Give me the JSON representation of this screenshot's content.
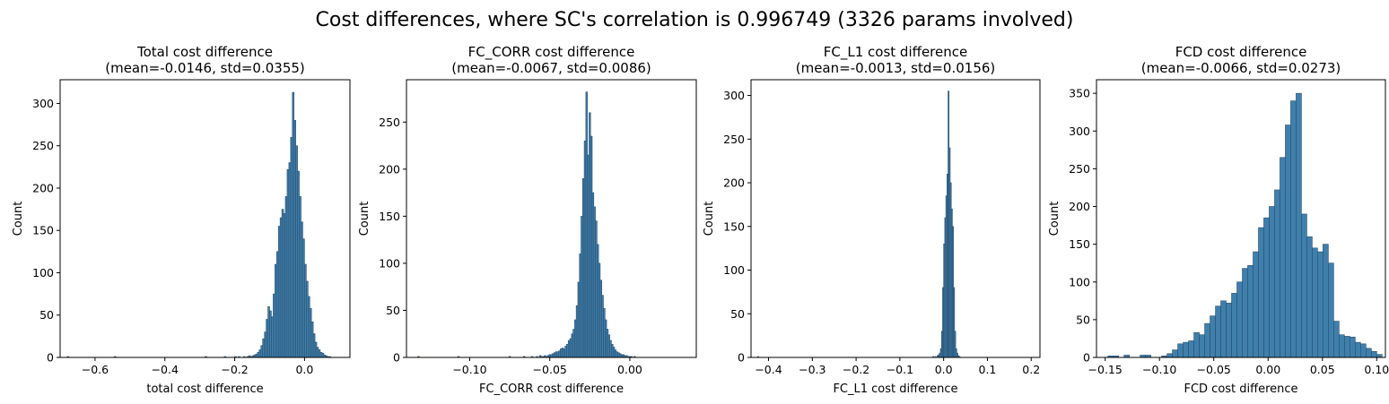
{
  "suptitle": "Cost differences, where SC's correlation is 0.996749 (3326 params involved)",
  "chart_data": [
    {
      "type": "bar",
      "title": "Total cost difference",
      "subtitle": "(mean=-0.0146, std=0.0355)",
      "xlabel": "total cost difference",
      "ylabel": "Count",
      "xlim": [
        -0.7,
        0.13
      ],
      "ylim": [
        0,
        328
      ],
      "xticks": [
        -0.6,
        -0.4,
        -0.2,
        0.0
      ],
      "yticks": [
        0,
        50,
        100,
        150,
        200,
        250,
        300
      ],
      "bar_color": "#3f7fac",
      "bin_start": -0.69,
      "bin_width": 0.005,
      "counts": [
        0,
        0,
        1,
        0,
        0,
        0,
        0,
        0,
        0,
        0,
        0,
        0,
        0,
        0,
        0,
        0,
        0,
        0,
        0,
        0,
        0,
        0,
        0,
        0,
        0,
        0,
        0,
        0,
        0,
        1,
        0,
        0,
        0,
        0,
        0,
        0,
        0,
        0,
        0,
        0,
        0,
        0,
        0,
        0,
        0,
        0,
        0,
        0,
        0,
        0,
        0,
        0,
        0,
        0,
        0,
        0,
        0,
        0,
        0,
        0,
        0,
        0,
        0,
        0,
        0,
        0,
        0,
        0,
        0,
        0,
        0,
        0,
        0,
        0,
        0,
        0,
        0,
        0,
        0,
        0,
        0,
        1,
        0,
        0,
        0,
        0,
        0,
        0,
        0,
        0,
        0,
        0,
        1,
        0,
        0,
        0,
        0,
        0,
        1,
        0,
        1,
        0,
        0,
        1,
        0,
        1,
        2,
        1,
        2,
        3,
        4,
        6,
        9,
        14,
        22,
        30,
        45,
        60,
        55,
        48,
        75,
        110,
        125,
        155,
        165,
        175,
        170,
        190,
        222,
        230,
        260,
        313,
        280,
        250,
        220,
        190,
        160,
        140,
        110,
        90,
        72,
        58,
        42,
        28,
        18,
        12,
        9,
        6,
        5,
        3,
        2,
        1,
        1,
        0,
        0
      ]
    },
    {
      "type": "bar",
      "title": "FC_CORR cost difference",
      "subtitle": "(mean=-0.0067, std=0.0086)",
      "xlabel": "FC_CORR cost difference",
      "ylabel": "Count",
      "xlim": [
        -0.1395,
        0.0415
      ],
      "ylim": [
        0,
        295
      ],
      "xticks": [
        -0.1,
        -0.05,
        0.0
      ],
      "yticks": [
        0,
        50,
        100,
        150,
        200,
        250
      ],
      "bar_color": "#3f7fac",
      "bin_start": -0.1325,
      "bin_width": 0.001,
      "counts": [
        1,
        0,
        0,
        0,
        0,
        0,
        0,
        0,
        0,
        0,
        0,
        0,
        0,
        0,
        0,
        0,
        0,
        0,
        0,
        0,
        0,
        0,
        0,
        0,
        0,
        1,
        0,
        0,
        0,
        0,
        0,
        0,
        0,
        0,
        0,
        0,
        0,
        0,
        0,
        0,
        0,
        0,
        0,
        0,
        0,
        0,
        0,
        0,
        0,
        0,
        0,
        0,
        0,
        0,
        0,
        0,
        0,
        1,
        0,
        0,
        0,
        0,
        0,
        0,
        0,
        0,
        1,
        0,
        0,
        0,
        0,
        1,
        0,
        0,
        1,
        0,
        2,
        1,
        1,
        2,
        1,
        2,
        3,
        3,
        4,
        5,
        6,
        6,
        7,
        9,
        10,
        9,
        12,
        14,
        18,
        20,
        25,
        30,
        40,
        55,
        80,
        110,
        150,
        190,
        230,
        282,
        215,
        260,
        235,
        175,
        160,
        145,
        120,
        100,
        82,
        66,
        52,
        40,
        30,
        24,
        18,
        14,
        11,
        8,
        6,
        5,
        4,
        3,
        3,
        2,
        2,
        1,
        1,
        1,
        0,
        1,
        0,
        0,
        0,
        0,
        0,
        0,
        0,
        0,
        0,
        0,
        0,
        0,
        0,
        0,
        0,
        0,
        0,
        0,
        0,
        0,
        0,
        0,
        0,
        0,
        0,
        0,
        0,
        0,
        0,
        0,
        0,
        0,
        0
      ]
    },
    {
      "type": "bar",
      "title": "FC_L1 cost difference",
      "subtitle": "(mean=-0.0013, std=0.0156)",
      "xlabel": "FC_L1 cost difference",
      "ylabel": "Count",
      "xlim": [
        -0.44,
        0.22
      ],
      "ylim": [
        0,
        318
      ],
      "xticks": [
        -0.4,
        -0.3,
        -0.2,
        -0.1,
        0.0,
        0.1,
        0.2
      ],
      "yticks": [
        0,
        50,
        100,
        150,
        200,
        250,
        300
      ],
      "bar_color": "#3f7fac",
      "bin_start": -0.425,
      "bin_width": 0.0025,
      "counts": [
        1,
        0,
        0,
        0,
        0,
        0,
        0,
        0,
        0,
        0,
        0,
        0,
        0,
        0,
        0,
        0,
        0,
        0,
        0,
        0,
        0,
        0,
        0,
        0,
        0,
        0,
        0,
        0,
        0,
        0,
        0,
        0,
        0,
        0,
        0,
        0,
        0,
        0,
        0,
        0,
        0,
        0,
        0,
        0,
        0,
        0,
        0,
        0,
        0,
        0,
        0,
        0,
        0,
        0,
        0,
        0,
        0,
        0,
        0,
        0,
        0,
        0,
        0,
        0,
        0,
        0,
        0,
        0,
        0,
        0,
        0,
        0,
        0,
        0,
        0,
        0,
        0,
        0,
        0,
        0,
        0,
        0,
        0,
        0,
        0,
        0,
        0,
        0,
        0,
        0,
        0,
        0,
        0,
        0,
        0,
        0,
        0,
        0,
        0,
        0,
        0,
        0,
        0,
        0,
        0,
        0,
        0,
        0,
        0,
        0,
        0,
        0,
        0,
        0,
        0,
        0,
        0,
        0,
        0,
        0,
        0,
        0,
        0,
        0,
        0,
        0,
        0,
        0,
        0,
        0,
        0,
        0,
        0,
        0,
        0,
        0,
        0,
        0,
        0,
        0,
        0,
        0,
        0,
        0,
        0,
        0,
        0,
        0,
        0,
        0,
        0,
        0,
        0,
        0,
        0,
        0,
        0,
        0,
        0,
        0,
        1,
        0,
        1,
        0,
        2,
        3,
        5,
        10,
        30,
        80,
        130,
        160,
        185,
        210,
        305,
        240,
        200,
        170,
        150,
        80,
        30,
        10,
        5,
        2,
        1,
        0
      ]
    },
    {
      "type": "bar",
      "title": "FCD cost difference",
      "subtitle": "(mean=-0.0066, std=0.0273)",
      "xlabel": "FCD cost difference",
      "ylabel": "Count",
      "xlim": [
        -0.158,
        0.108
      ],
      "ylim": [
        0,
        368
      ],
      "xticks": [
        -0.15,
        -0.1,
        -0.05,
        0.0,
        0.05,
        0.1
      ],
      "yticks": [
        0,
        50,
        100,
        150,
        200,
        250,
        300,
        350
      ],
      "bar_color": "#3f7fac",
      "bin_start": -0.1475,
      "bin_width": 0.00495,
      "counts": [
        2,
        2,
        0,
        3,
        0,
        0,
        3,
        3,
        0,
        0,
        2,
        5,
        10,
        18,
        20,
        22,
        33,
        30,
        45,
        55,
        68,
        75,
        72,
        85,
        100,
        118,
        122,
        140,
        172,
        185,
        200,
        222,
        265,
        308,
        340,
        350,
        190,
        160,
        145,
        140,
        150,
        125,
        48,
        30,
        28,
        27,
        20,
        18,
        12,
        8,
        4,
        0,
        0,
        0,
        3
      ]
    }
  ]
}
